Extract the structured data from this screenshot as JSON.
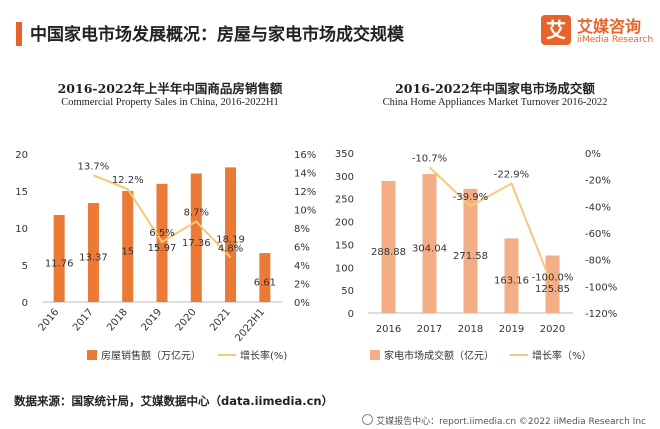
{
  "header": {
    "title": "中国家电市场发展概况：房屋与家电市场成交规模",
    "logo_mark": "艾",
    "logo_cn": "艾媒咨询",
    "logo_en": "iiMedia Research"
  },
  "chart_data": [
    {
      "type": "bar",
      "title": "2016-2022年上半年中国商品房销售额",
      "subtitle": "Commercial Property Sales in China, 2016-2022H1",
      "categories": [
        "2016",
        "2017",
        "2018",
        "2019",
        "2020",
        "2021",
        "2022H1"
      ],
      "y_ticks": [
        "0",
        "5",
        "10",
        "15",
        "20"
      ],
      "y2_ticks": [
        "0%",
        "2%",
        "4%",
        "6%",
        "8%",
        "10%",
        "12%",
        "14%",
        "16%"
      ],
      "ylim": [
        0,
        20
      ],
      "y2lim": [
        0,
        16
      ],
      "series": [
        {
          "name": "房屋销售额（万亿元）",
          "type": "bar",
          "color": "#ea7a35",
          "values": [
            11.76,
            13.37,
            15,
            15.97,
            17.36,
            18.19,
            6.61
          ],
          "labels": [
            "11.76",
            "13.37",
            "15",
            "15.97",
            "17.36",
            "18.19",
            "6.61"
          ]
        },
        {
          "name": "增长率(%)",
          "type": "line",
          "color": "#f6c978",
          "values": [
            null,
            13.7,
            12.2,
            6.5,
            8.7,
            4.8,
            null
          ],
          "labels": [
            "",
            "13.7%",
            "12.2%",
            "6.5%",
            "8.7%",
            "4.8%",
            ""
          ]
        }
      ]
    },
    {
      "type": "bar",
      "title": "2016-2022年中国家电市场成交额",
      "subtitle": "China Home Appliances Market Turnover 2016-2022",
      "categories": [
        "2016",
        "2017",
        "2018",
        "2019",
        "2020"
      ],
      "y_ticks": [
        "0",
        "50",
        "100",
        "150",
        "200",
        "250",
        "300",
        "350"
      ],
      "y2_ticks": [
        "-120%",
        "-100%",
        "-80%",
        "-60%",
        "-40%",
        "-20%",
        "0%"
      ],
      "ylim": [
        0,
        350
      ],
      "y2lim": [
        -120,
        0
      ],
      "series": [
        {
          "name": "家电市场成交额（亿元）",
          "type": "bar",
          "color": "#f4ae86",
          "values": [
            288.88,
            304.04,
            271.58,
            163.16,
            125.85
          ],
          "labels": [
            "288.88",
            "304.04",
            "271.58",
            "163.16",
            "125.85"
          ]
        },
        {
          "name": "增长率（%）",
          "type": "line",
          "color": "#f6c978",
          "values": [
            null,
            -10.7,
            -39.9,
            -22.9,
            -100.0
          ],
          "labels": [
            "",
            "-10.7%",
            "-39.9%",
            "-22.9%",
            "-100.0%"
          ]
        }
      ]
    }
  ],
  "footer": {
    "source": "数据来源：国家统计局，艾媒数据中心（data.iimedia.cn）",
    "copyright": "艾媒报告中心：report.iimedia.cn ©2022 iiMedia Research Inc"
  }
}
